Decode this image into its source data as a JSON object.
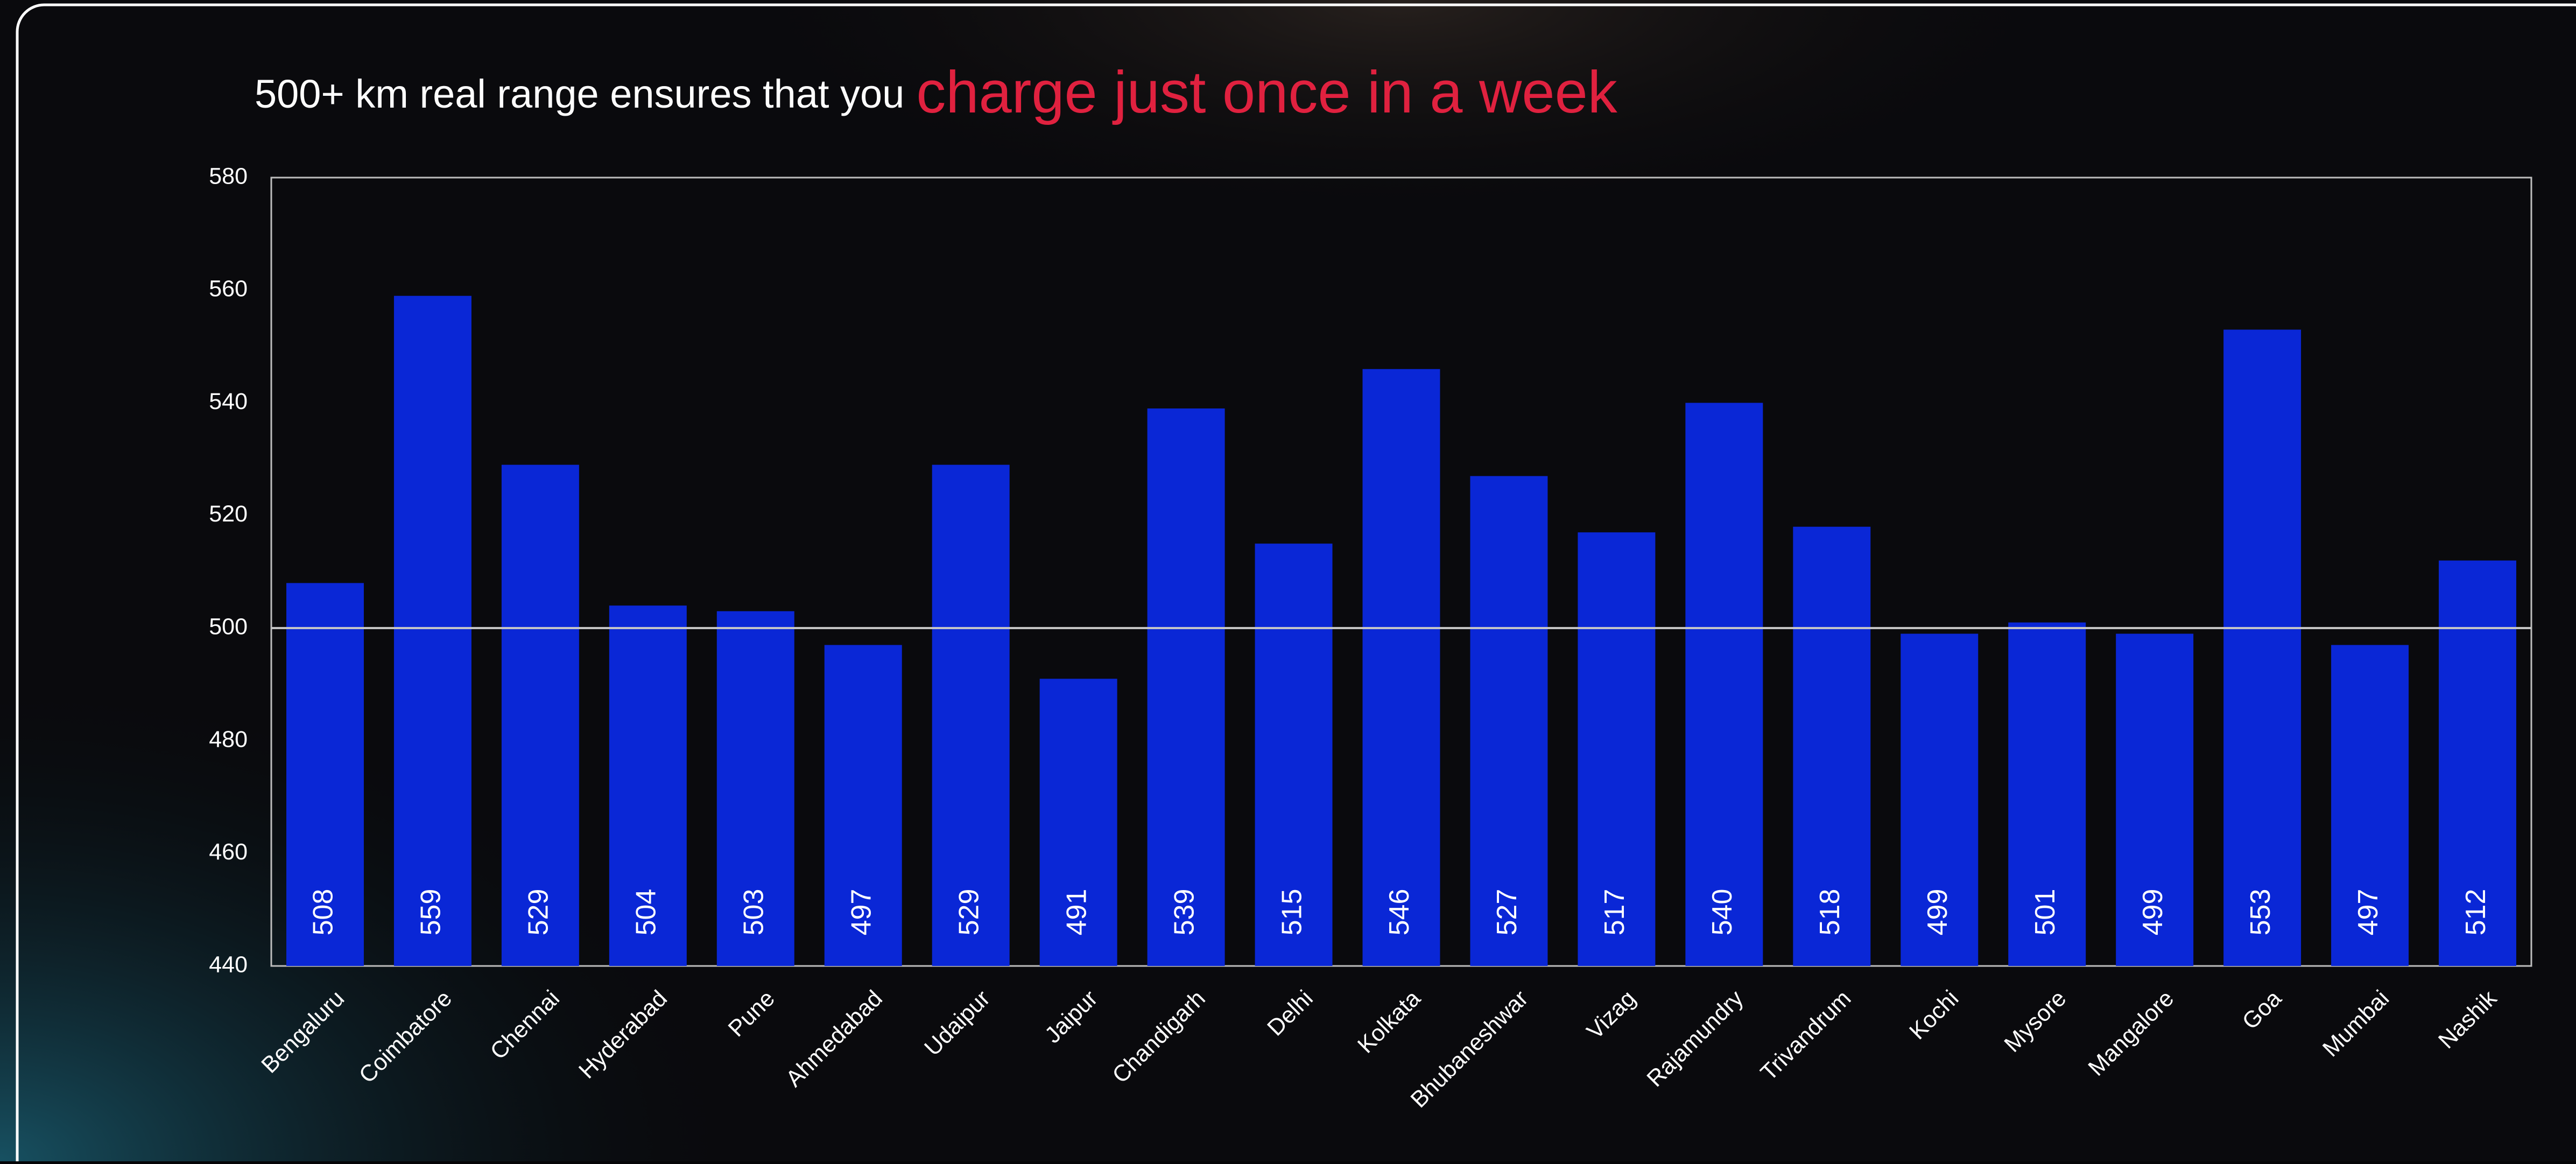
{
  "chart_data": {
    "type": "bar",
    "title": "500+ km real range ensures that you",
    "title_highlight": "charge just once in a week",
    "title_highlight_color": "#e0213f",
    "categories": [
      "Bengaluru",
      "Coimbatore",
      "Chennai",
      "Hyderabad",
      "Pune",
      "Ahmedabad",
      "Udaipur",
      "Jaipur",
      "Chandigarh",
      "Delhi",
      "Kolkata",
      "Bhubaneshwar",
      "Vizag",
      "Rajamundry",
      "Trivandrum",
      "Kochi",
      "Mysore",
      "Mangalore",
      "Goa",
      "Mumbai",
      "Nashik"
    ],
    "values": [
      508,
      559,
      529,
      504,
      503,
      497,
      529,
      491,
      539,
      515,
      546,
      527,
      517,
      540,
      518,
      499,
      501,
      499,
      553,
      497,
      512
    ],
    "color": "#0a27d6",
    "ylim": [
      440,
      580
    ],
    "yticks": [
      440,
      460,
      480,
      500,
      520,
      540,
      560,
      580
    ],
    "reference_line": 500,
    "grid": false
  }
}
